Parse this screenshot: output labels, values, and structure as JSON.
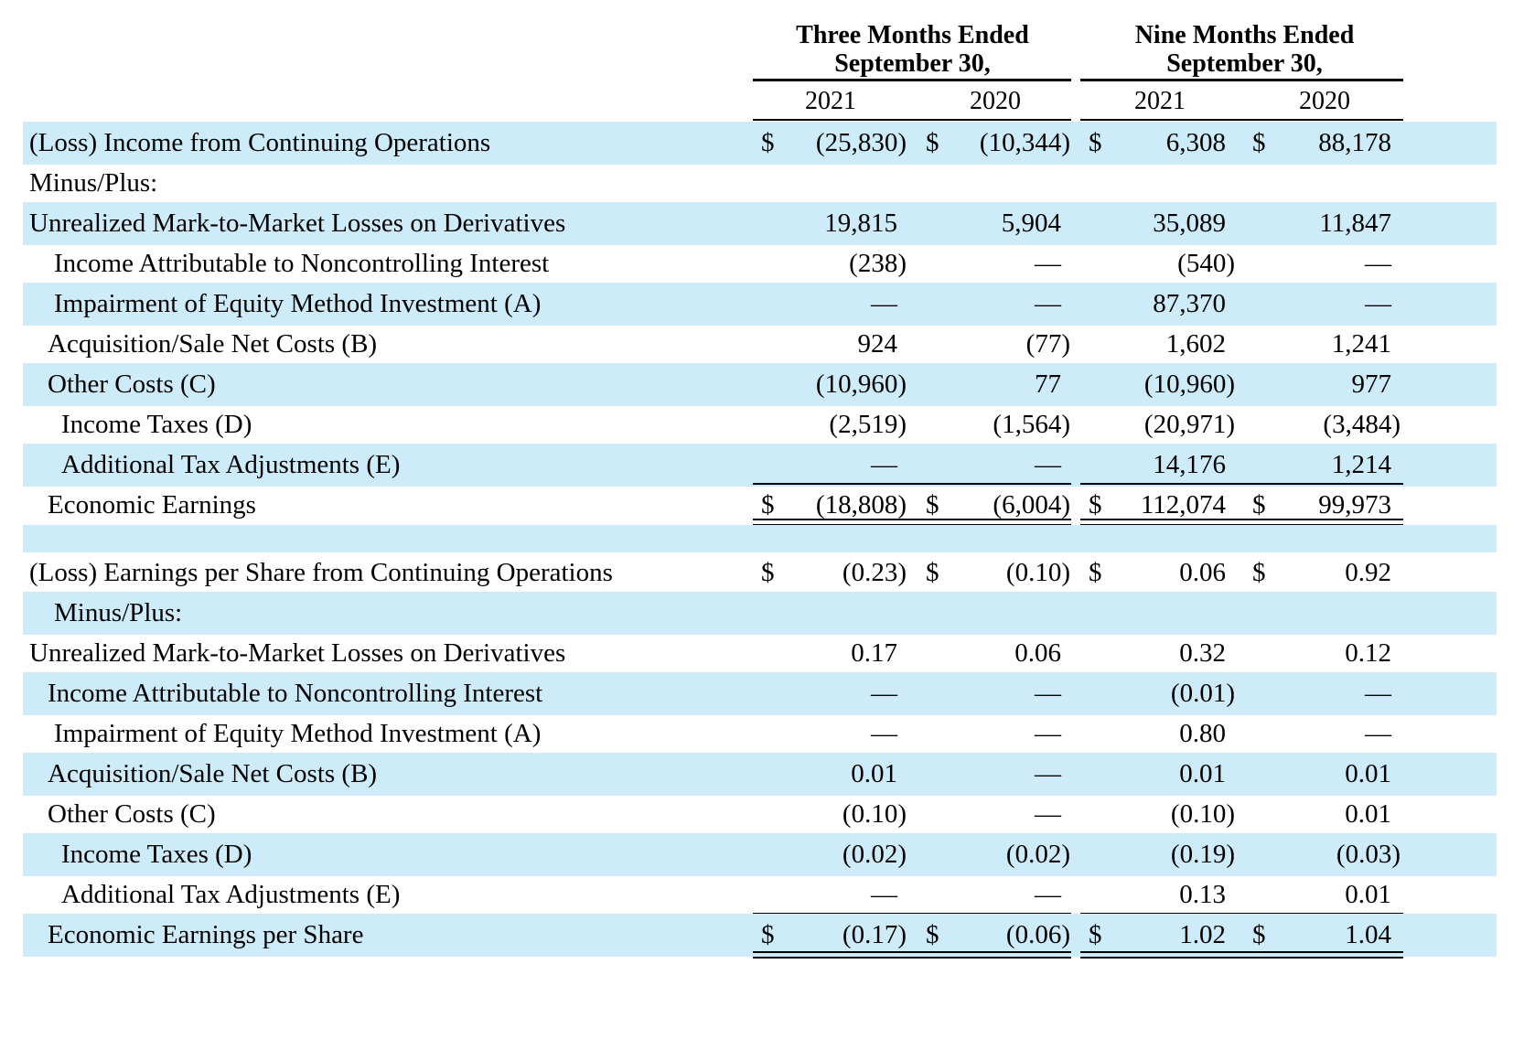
{
  "header": {
    "three_months_line1": "Three Months Ended",
    "three_months_line2": "September 30,",
    "nine_months_line1": "Nine Months Ended",
    "nine_months_line2": "September 30,",
    "years": [
      "2021",
      "2020",
      "2021",
      "2020"
    ]
  },
  "rows": [
    {
      "label": "(Loss) Income from Continuing Operations",
      "values": [
        "(25,830)",
        "(10,344)",
        "6,308",
        "88,178"
      ],
      "dollar": [
        "$",
        "$",
        "$",
        "$"
      ]
    },
    {
      "label": "Minus/Plus:",
      "values": [
        "",
        "",
        "",
        ""
      ],
      "dollar": [
        "",
        "",
        "",
        ""
      ]
    },
    {
      "label": "Unrealized Mark-to-Market Losses on Derivatives",
      "values": [
        "19,815",
        "5,904",
        "35,089",
        "11,847"
      ],
      "dollar": [
        "",
        "",
        "",
        ""
      ]
    },
    {
      "label": "Income Attributable to Noncontrolling Interest",
      "values": [
        "(238)",
        "—",
        "(540)",
        "—"
      ],
      "dollar": [
        "",
        "",
        "",
        ""
      ]
    },
    {
      "label": "Impairment of Equity Method Investment (A)",
      "values": [
        "—",
        "—",
        "87,370",
        "—"
      ],
      "dollar": [
        "",
        "",
        "",
        ""
      ]
    },
    {
      "label": "Acquisition/Sale Net Costs (B)",
      "values": [
        "924",
        "(77)",
        "1,602",
        "1,241"
      ],
      "dollar": [
        "",
        "",
        "",
        ""
      ]
    },
    {
      "label": "Other Costs (C)",
      "values": [
        "(10,960)",
        "77",
        "(10,960)",
        "977"
      ],
      "dollar": [
        "",
        "",
        "",
        ""
      ]
    },
    {
      "label": "Income Taxes (D)",
      "values": [
        "(2,519)",
        "(1,564)",
        "(20,971)",
        "(3,484)"
      ],
      "dollar": [
        "",
        "",
        "",
        ""
      ]
    },
    {
      "label": "Additional Tax Adjustments (E)",
      "values": [
        "—",
        "—",
        "14,176",
        "1,214"
      ],
      "dollar": [
        "",
        "",
        "",
        ""
      ]
    },
    {
      "label": "Economic Earnings",
      "values": [
        "(18,808)",
        "(6,004)",
        "112,074",
        "99,973"
      ],
      "dollar": [
        "$",
        "$",
        "$",
        "$"
      ]
    },
    {
      "label": "(Loss) Earnings per Share from Continuing Operations",
      "values": [
        "(0.23)",
        "(0.10)",
        "0.06",
        "0.92"
      ],
      "dollar": [
        "$",
        "$",
        "$",
        "$"
      ]
    },
    {
      "label": "Minus/Plus:",
      "values": [
        "",
        "",
        "",
        ""
      ],
      "dollar": [
        "",
        "",
        "",
        ""
      ]
    },
    {
      "label": "Unrealized Mark-to-Market Losses on Derivatives",
      "values": [
        "0.17",
        "0.06",
        "0.32",
        "0.12"
      ],
      "dollar": [
        "",
        "",
        "",
        ""
      ]
    },
    {
      "label": "Income Attributable to Noncontrolling Interest",
      "values": [
        "—",
        "—",
        "(0.01)",
        "—"
      ],
      "dollar": [
        "",
        "",
        "",
        ""
      ]
    },
    {
      "label": "Impairment of Equity Method Investment (A)",
      "values": [
        "—",
        "—",
        "0.80",
        "—"
      ],
      "dollar": [
        "",
        "",
        "",
        ""
      ]
    },
    {
      "label": "Acquisition/Sale Net Costs (B)",
      "values": [
        "0.01",
        "—",
        "0.01",
        "0.01"
      ],
      "dollar": [
        "",
        "",
        "",
        ""
      ]
    },
    {
      "label": "Other Costs (C)",
      "values": [
        "(0.10)",
        "—",
        "(0.10)",
        "0.01"
      ],
      "dollar": [
        "",
        "",
        "",
        ""
      ]
    },
    {
      "label": "Income Taxes (D)",
      "values": [
        "(0.02)",
        "(0.02)",
        "(0.19)",
        "(0.03)"
      ],
      "dollar": [
        "",
        "",
        "",
        ""
      ]
    },
    {
      "label": "Additional Tax Adjustments (E)",
      "values": [
        "—",
        "—",
        "0.13",
        "0.01"
      ],
      "dollar": [
        "",
        "",
        "",
        ""
      ]
    },
    {
      "label": "Economic Earnings per Share",
      "values": [
        "(0.17)",
        "(0.06)",
        "1.02",
        "1.04"
      ],
      "dollar": [
        "$",
        "$",
        "$",
        "$"
      ]
    }
  ]
}
